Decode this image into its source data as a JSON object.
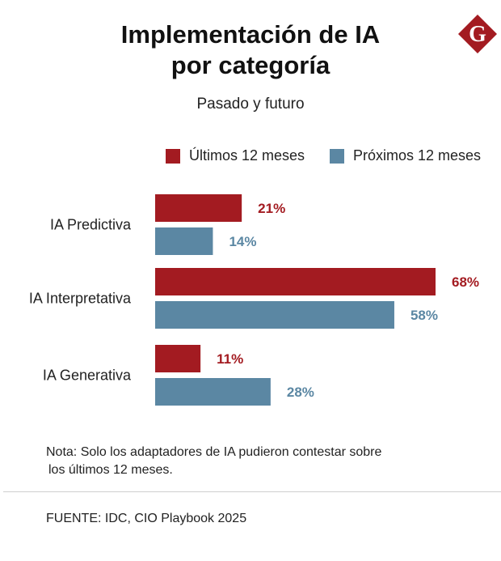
{
  "header": {
    "title_line1": "Implementación de IA",
    "title_line2": "por categoría",
    "subtitle": "Pasado y futuro"
  },
  "logo": {
    "letter": "G",
    "color": "#a31b21"
  },
  "legend": {
    "items": [
      {
        "label": "Últimos 12 meses",
        "color": "#a31b21"
      },
      {
        "label": "Próximos 12 meses",
        "color": "#5b87a3"
      }
    ]
  },
  "chart_data": {
    "type": "bar",
    "orientation": "horizontal",
    "title": "Implementación de IA por categoría",
    "subtitle": "Pasado y futuro",
    "categories": [
      "IA Predictiva",
      "IA Interpretativa",
      "IA Generativa"
    ],
    "series": [
      {
        "name": "Últimos 12 meses",
        "color": "#a31b21",
        "values": [
          21,
          68,
          11
        ],
        "labels": [
          "21%",
          "68%",
          "11%"
        ]
      },
      {
        "name": "Próximos 12 meses",
        "color": "#5b87a3",
        "values": [
          14,
          58,
          28
        ],
        "labels": [
          "14%",
          "58%",
          "28%"
        ]
      }
    ],
    "xlim": [
      0,
      68
    ],
    "unit": "%",
    "legend_position": "top-right",
    "grid": false
  },
  "footer": {
    "note_line1": "Nota: Solo los adaptadores de IA pudieron contestar sobre",
    "note_line2": "los últimos 12 meses.",
    "source": "FUENTE: IDC, CIO Playbook 2025"
  }
}
